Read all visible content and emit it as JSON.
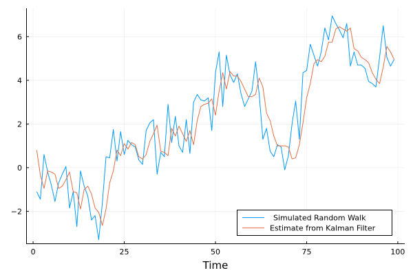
{
  "chart_data": {
    "type": "line",
    "title": "",
    "xlabel": "Time",
    "ylabel": "",
    "xlim": [
      -1.9,
      101.9
    ],
    "ylim": [
      -3.5,
      7.3
    ],
    "xticks": [
      0,
      25,
      50,
      75,
      100
    ],
    "yticks": [
      -2,
      0,
      2,
      4,
      6
    ],
    "grid": true,
    "legend_position": "bottom-right",
    "series": [
      {
        "name": "Simulated Random Walk",
        "color": "#009AFA",
        "x": [
          1,
          2,
          3,
          4,
          5,
          6,
          7,
          8,
          9,
          10,
          11,
          12,
          13,
          14,
          15,
          16,
          17,
          18,
          19,
          20,
          21,
          22,
          23,
          24,
          25,
          26,
          27,
          28,
          29,
          30,
          31,
          32,
          33,
          34,
          35,
          36,
          37,
          38,
          39,
          40,
          41,
          42,
          43,
          44,
          45,
          46,
          47,
          48,
          49,
          50,
          51,
          52,
          53,
          54,
          55,
          56,
          57,
          58,
          59,
          60,
          61,
          62,
          63,
          64,
          65,
          66,
          67,
          68,
          69,
          70,
          71,
          72,
          73,
          74,
          75,
          76,
          77,
          78,
          79,
          80,
          81,
          82,
          83,
          84,
          85,
          86,
          87,
          88,
          89,
          90,
          91,
          92,
          93,
          94,
          95,
          96,
          97,
          98,
          99
        ],
        "values": [
          -1.1,
          -1.45,
          0.6,
          -0.2,
          -0.8,
          -1.55,
          -0.7,
          -0.3,
          0.05,
          -1.85,
          -1.1,
          -2.7,
          -0.15,
          -0.85,
          -1.3,
          -2.4,
          -2.2,
          -3.3,
          -1.6,
          0.5,
          0.45,
          1.75,
          0.3,
          1.65,
          0.6,
          1.25,
          1.05,
          0.95,
          0.35,
          0.15,
          1.7,
          2.05,
          2.2,
          -0.3,
          0.7,
          0.5,
          2.9,
          1.15,
          2.35,
          1.0,
          0.7,
          2.2,
          0.65,
          3.0,
          3.35,
          3.1,
          3.05,
          3.2,
          1.7,
          4.35,
          5.3,
          2.8,
          5.15,
          4.25,
          3.9,
          4.3,
          3.4,
          2.8,
          3.15,
          3.5,
          4.85,
          3.35,
          1.3,
          1.8,
          0.75,
          0.5,
          1.05,
          0.95,
          -0.1,
          0.55,
          2.0,
          3.05,
          1.3,
          4.35,
          4.45,
          5.65,
          5.15,
          4.65,
          5.3,
          6.4,
          5.85,
          6.95,
          6.6,
          6.3,
          5.95,
          6.6,
          4.65,
          5.3,
          4.7,
          4.7,
          4.55,
          3.95,
          3.85,
          3.7,
          5.05,
          6.5,
          5.05,
          4.65,
          4.95
        ]
      },
      {
        "name": "Estimate from Kalman Filter",
        "color": "#E26F46",
        "x": [
          1,
          2,
          3,
          4,
          5,
          6,
          7,
          8,
          9,
          10,
          11,
          12,
          13,
          14,
          15,
          16,
          17,
          18,
          19,
          20,
          21,
          22,
          23,
          24,
          25,
          26,
          27,
          28,
          29,
          30,
          31,
          32,
          33,
          34,
          35,
          36,
          37,
          38,
          39,
          40,
          41,
          42,
          43,
          44,
          45,
          46,
          47,
          48,
          49,
          50,
          51,
          52,
          53,
          54,
          55,
          56,
          57,
          58,
          59,
          60,
          61,
          62,
          63,
          64,
          65,
          66,
          67,
          68,
          69,
          70,
          71,
          72,
          73,
          74,
          75,
          76,
          77,
          78,
          79,
          80,
          81,
          82,
          83,
          84,
          85,
          86,
          87,
          88,
          89,
          90,
          91,
          92,
          93,
          94,
          95,
          96,
          97,
          98,
          99
        ],
        "values": [
          0.8,
          -0.35,
          -0.95,
          -0.15,
          -0.2,
          -0.3,
          -0.95,
          -0.85,
          -0.55,
          -0.2,
          -1.1,
          -1.15,
          -1.9,
          -1.0,
          -0.85,
          -1.2,
          -1.85,
          -2.05,
          -2.65,
          -1.9,
          -0.7,
          -0.15,
          0.8,
          0.55,
          1.1,
          0.85,
          1.15,
          1.05,
          0.5,
          0.4,
          0.6,
          1.2,
          1.55,
          1.95,
          0.75,
          0.7,
          0.55,
          1.8,
          1.45,
          1.9,
          1.55,
          1.2,
          1.7,
          1.05,
          2.15,
          2.8,
          2.9,
          2.95,
          3.15,
          2.4,
          3.5,
          4.35,
          3.6,
          4.4,
          4.2,
          4.2,
          3.95,
          3.6,
          3.25,
          3.25,
          3.35,
          4.1,
          3.7,
          2.5,
          2.15,
          1.45,
          1.0,
          1.0,
          1.0,
          0.95,
          0.4,
          0.45,
          1.05,
          2.05,
          3.2,
          3.85,
          4.75,
          4.95,
          4.85,
          5.1,
          5.75,
          5.75,
          6.35,
          6.45,
          6.35,
          6.25,
          6.4,
          5.45,
          5.35,
          5.05,
          4.95,
          4.8,
          4.35,
          4.05,
          3.85,
          4.6,
          5.55,
          5.3,
          4.95
        ]
      }
    ]
  }
}
